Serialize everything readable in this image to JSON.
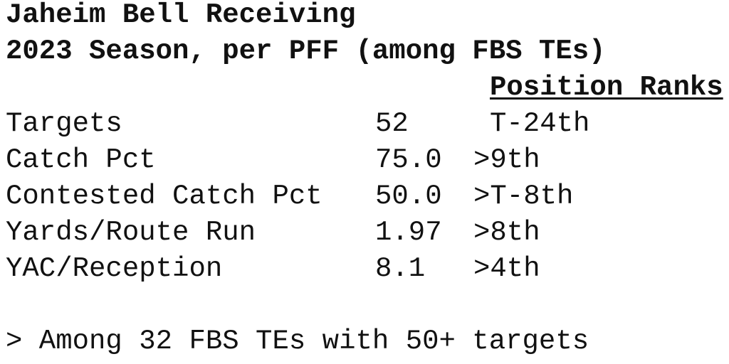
{
  "title": "Jaheim Bell Receiving",
  "subtitle": "2023 Season, per PFF (among FBS TEs)",
  "table": {
    "header": "Position Ranks",
    "rows": [
      [
        "Targets",
        "52",
        "T-24th"
      ],
      [
        "Catch Pct",
        "75.0",
        ">9th"
      ],
      [
        "Contested Catch Pct",
        "50.0",
        ">T-8th"
      ],
      [
        "Yards/Route Run",
        "1.97",
        ">8th"
      ],
      [
        "YAC/Reception",
        "8.1",
        ">4th"
      ]
    ]
  },
  "footnote": "> Among 32 FBS TEs with 50+ targets"
}
